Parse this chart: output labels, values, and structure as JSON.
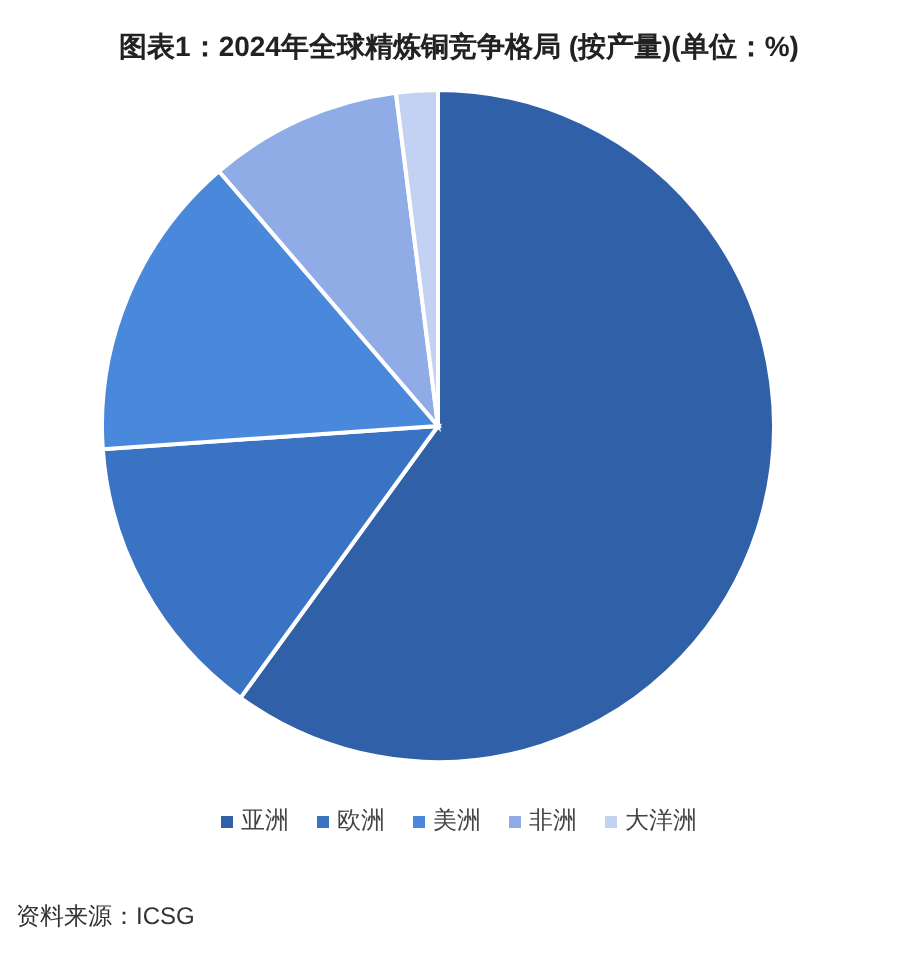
{
  "chart_data": {
    "type": "pie",
    "title": "图表1：2024年全球精炼铜竞争格局 (按产量)(单位：%)",
    "categories": [
      "亚洲",
      "欧洲",
      "美洲",
      "非洲",
      "大洋洲"
    ],
    "values": [
      60,
      13.9,
      14.8,
      9.3,
      2
    ],
    "colors": [
      "#3060a8",
      "#3a72c4",
      "#4a88dc",
      "#90ace6",
      "#c3d2f2"
    ],
    "legend": "bottom",
    "annotations": [
      "资料来源：ICSG"
    ]
  }
}
